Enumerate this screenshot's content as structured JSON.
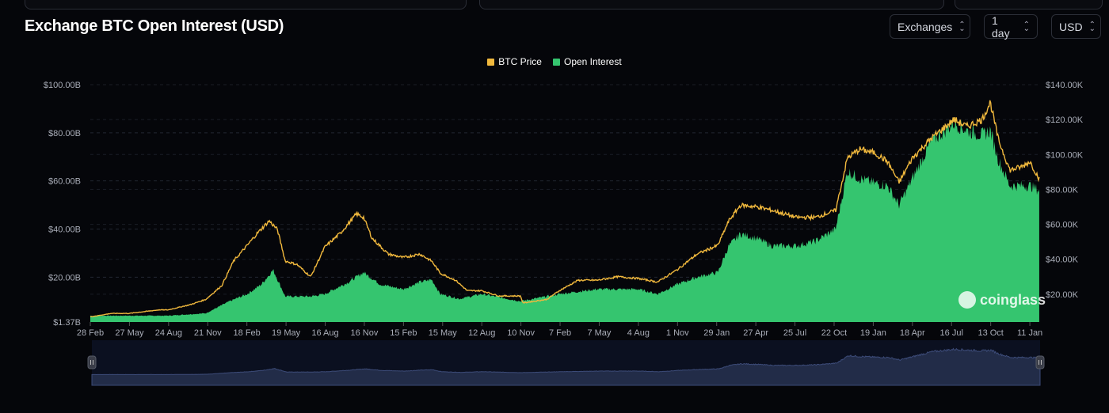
{
  "header": {
    "title": "Exchange BTC Open Interest (USD)",
    "selectors": [
      {
        "label": "Exchanges"
      },
      {
        "label": "1 day"
      },
      {
        "label": "USD"
      }
    ]
  },
  "watermark": "coinglass",
  "colors": {
    "price": "#f0b83d",
    "oi": "#35c56f",
    "bg": "#05060a",
    "nav_bg": "#0b1020",
    "nav_area": "#222c48"
  },
  "chart_data": {
    "type": "area",
    "title": "Exchange BTC Open Interest (USD)",
    "legend": [
      "BTC Price",
      "Open Interest"
    ],
    "legend_position": "top-center",
    "x_tick_labels": [
      "28 Feb",
      "27 May",
      "24 Aug",
      "21 Nov",
      "18 Feb",
      "19 May",
      "16 Aug",
      "16 Nov",
      "15 Feb",
      "15 May",
      "12 Aug",
      "10 Nov",
      "7 Feb",
      "7 May",
      "4 Aug",
      "1 Nov",
      "29 Jan",
      "27 Apr",
      "25 Jul",
      "22 Oct",
      "19 Jan",
      "18 Apr",
      "16 Jul",
      "13 Oct",
      "11 Jan"
    ],
    "x_unit": "tick index (each tick ≈ 89 days)",
    "y_left": {
      "label": "Open Interest",
      "ticks": [
        "$1.37B",
        "$20.00B",
        "$40.00B",
        "$60.00B",
        "$80.00B",
        "$100.00B"
      ],
      "tick_values": [
        1.37,
        20,
        40,
        60,
        80,
        100
      ],
      "range": [
        1.37,
        100
      ],
      "unit": "B USD"
    },
    "y_right": {
      "label": "BTC Price",
      "ticks": [
        "$20.00K",
        "$40.00K",
        "$60.00K",
        "$80.00K",
        "$100.00K",
        "$120.00K",
        "$140.00K"
      ],
      "tick_values": [
        20,
        40,
        60,
        80,
        100,
        120,
        140
      ],
      "range": [
        0,
        140
      ],
      "unit": "K USD"
    },
    "grid": true,
    "series": [
      {
        "name": "BTC Price",
        "axis": "right",
        "type": "line",
        "points": [
          [
            0,
            7
          ],
          [
            0.53,
            9
          ],
          [
            0.99,
            9
          ],
          [
            1.74,
            11
          ],
          [
            1.98,
            11
          ],
          [
            2.55,
            14
          ],
          [
            2.95,
            17
          ],
          [
            3.36,
            25
          ],
          [
            3.66,
            39
          ],
          [
            4.01,
            48
          ],
          [
            4.27,
            55
          ],
          [
            4.57,
            62
          ],
          [
            4.78,
            57
          ],
          [
            4.98,
            39
          ],
          [
            5.28,
            37
          ],
          [
            5.63,
            30
          ],
          [
            5.99,
            47
          ],
          [
            6.39,
            55
          ],
          [
            6.8,
            66
          ],
          [
            6.98,
            64
          ],
          [
            7.2,
            52
          ],
          [
            7.61,
            43
          ],
          [
            7.99,
            41
          ],
          [
            8.42,
            43
          ],
          [
            8.72,
            39
          ],
          [
            8.94,
            32
          ],
          [
            9.33,
            28
          ],
          [
            9.63,
            22
          ],
          [
            10.0,
            22
          ],
          [
            10.44,
            19
          ],
          [
            10.99,
            19
          ],
          [
            11.05,
            15
          ],
          [
            11.66,
            17
          ],
          [
            11.98,
            22
          ],
          [
            12.46,
            28
          ],
          [
            12.95,
            28
          ],
          [
            13.48,
            30
          ],
          [
            14.0,
            29
          ],
          [
            14.49,
            27
          ],
          [
            14.99,
            34
          ],
          [
            15.5,
            43
          ],
          [
            16.03,
            48
          ],
          [
            16.31,
            62
          ],
          [
            16.61,
            71
          ],
          [
            17.04,
            70
          ],
          [
            17.42,
            68
          ],
          [
            18.03,
            64
          ],
          [
            18.53,
            64
          ],
          [
            19.04,
            68
          ],
          [
            19.34,
            98
          ],
          [
            19.65,
            103
          ],
          [
            20.03,
            101
          ],
          [
            20.36,
            96
          ],
          [
            20.66,
            84
          ],
          [
            21.0,
            98
          ],
          [
            21.47,
            109
          ],
          [
            22.06,
            120
          ],
          [
            22.39,
            116
          ],
          [
            22.78,
            120
          ],
          [
            22.99,
            130
          ],
          [
            23.19,
            109
          ],
          [
            23.49,
            91
          ],
          [
            23.8,
            93
          ],
          [
            24.0,
            96
          ],
          [
            24.24,
            86
          ]
        ]
      },
      {
        "name": "Open Interest",
        "axis": "left",
        "type": "area",
        "points": [
          [
            0,
            4
          ],
          [
            0.99,
            4
          ],
          [
            1.98,
            4
          ],
          [
            2.95,
            5
          ],
          [
            3.56,
            10
          ],
          [
            4.01,
            13
          ],
          [
            4.37,
            17
          ],
          [
            4.67,
            23
          ],
          [
            4.98,
            12
          ],
          [
            5.63,
            12
          ],
          [
            5.99,
            13
          ],
          [
            6.6,
            18
          ],
          [
            6.98,
            22
          ],
          [
            7.41,
            17
          ],
          [
            7.99,
            15
          ],
          [
            8.42,
            18
          ],
          [
            8.72,
            19
          ],
          [
            8.94,
            13
          ],
          [
            9.43,
            11
          ],
          [
            10.0,
            13
          ],
          [
            10.99,
            10
          ],
          [
            11.98,
            13
          ],
          [
            12.95,
            15
          ],
          [
            14.0,
            15
          ],
          [
            14.49,
            13
          ],
          [
            14.99,
            17
          ],
          [
            15.5,
            20
          ],
          [
            16.03,
            22
          ],
          [
            16.31,
            33
          ],
          [
            16.61,
            38
          ],
          [
            17.04,
            36
          ],
          [
            17.42,
            33
          ],
          [
            18.03,
            33
          ],
          [
            18.53,
            35
          ],
          [
            19.04,
            40
          ],
          [
            19.34,
            64
          ],
          [
            19.65,
            61
          ],
          [
            20.03,
            59
          ],
          [
            20.36,
            58
          ],
          [
            20.66,
            50
          ],
          [
            21.0,
            61
          ],
          [
            21.47,
            76
          ],
          [
            22.06,
            84
          ],
          [
            22.39,
            81
          ],
          [
            22.78,
            79
          ],
          [
            22.99,
            81
          ],
          [
            23.19,
            69
          ],
          [
            23.49,
            58
          ],
          [
            24.0,
            58
          ],
          [
            24.24,
            56
          ]
        ]
      }
    ]
  }
}
